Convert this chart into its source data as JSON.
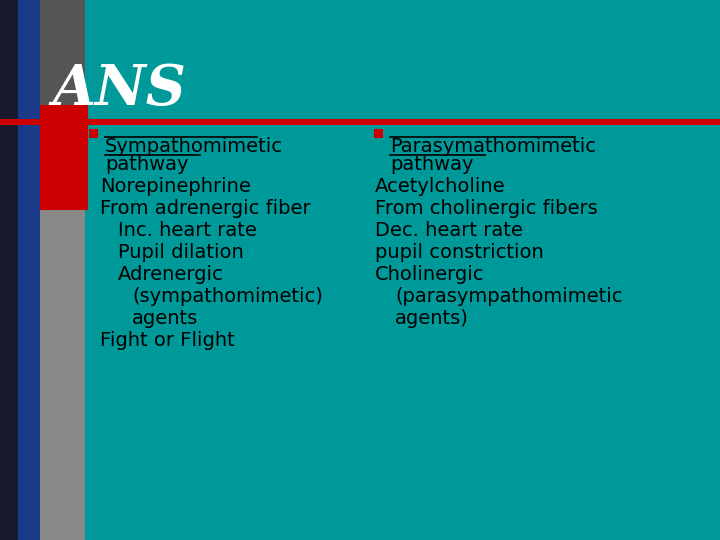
{
  "title": "ANS",
  "bg_color": "#009999",
  "title_color": "#ffffff",
  "separator_color": "#cc0000",
  "bullet_color": "#cc0000",
  "text_color": "#000000",
  "dark_navy": "#1a1a2e",
  "dark_blue": "#1a3a8a",
  "gray_color": "#888888",
  "red_block_color": "#cc0000",
  "left_bullet": "Sympathomimetic\npathway",
  "right_bullet": "Parasymathomimetic\npathway",
  "left_lines": [
    "Norepinephrine",
    "From adrenergic fiber",
    "Inc. heart rate",
    "Pupil dilation",
    "Adrenergic",
    "   (sympathomimetic)",
    "   agents",
    "Fight or Flight"
  ],
  "right_lines": [
    "Acetylcholine",
    "From cholinergic fibers",
    "Dec. heart rate",
    "pupil constriction",
    "Cholinergic",
    "   (parasympathomimetic",
    "   agents)"
  ],
  "font_size": 14,
  "bullet_font_size": 14,
  "title_font_size": 40
}
